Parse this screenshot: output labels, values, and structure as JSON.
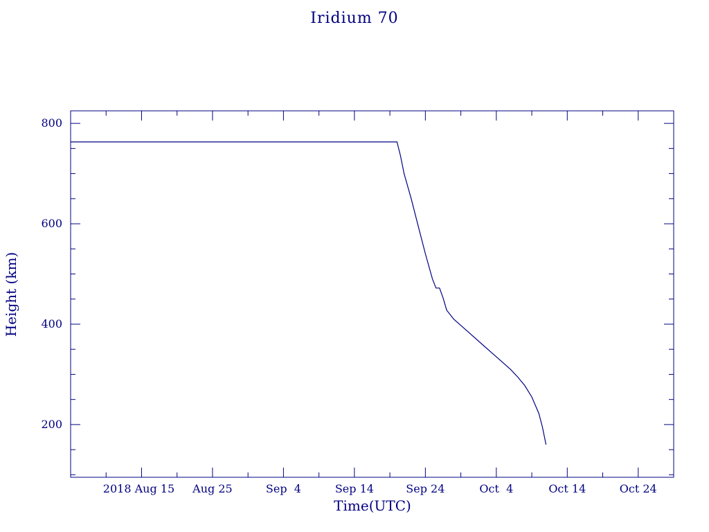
{
  "chart_data": {
    "type": "line",
    "title": "Iridium 70",
    "xlabel": "Time(UTC)",
    "ylabel": "Height (km)",
    "x_tick_labels": [
      "2018 Aug 15",
      "Aug 25",
      "Sep  4",
      "Sep 14",
      "Sep 24",
      "Oct  4",
      "Oct 14",
      "Oct 24"
    ],
    "x_tick_dates": [
      "2018-08-15",
      "2018-08-25",
      "2018-09-04",
      "2018-09-14",
      "2018-09-24",
      "2018-10-04",
      "2018-10-14",
      "2018-10-24"
    ],
    "xlim": [
      "2018-08-05",
      "2018-10-29"
    ],
    "y_ticks": [
      200,
      400,
      600,
      800
    ],
    "ylim": [
      95,
      825
    ],
    "grid": false,
    "color": "#000080",
    "series": [
      {
        "x": [
          "2018-08-05",
          "2018-08-20",
          "2018-09-05",
          "2018-09-20",
          "2018-09-20 12:00",
          "2018-09-21",
          "2018-09-22",
          "2018-09-23",
          "2018-09-24",
          "2018-09-25",
          "2018-09-25 12:00",
          "2018-09-26",
          "2018-09-26 12:00",
          "2018-09-27",
          "2018-09-28",
          "2018-09-30",
          "2018-10-02",
          "2018-10-04",
          "2018-10-06",
          "2018-10-07",
          "2018-10-08",
          "2018-10-09",
          "2018-10-10",
          "2018-10-10 12:00",
          "2018-10-11"
        ],
        "y": [
          763,
          763,
          763,
          763,
          735,
          700,
          650,
          595,
          540,
          490,
          472,
          472,
          452,
          428,
          410,
          385,
          360,
          335,
          310,
          295,
          278,
          255,
          222,
          195,
          160
        ]
      }
    ]
  }
}
